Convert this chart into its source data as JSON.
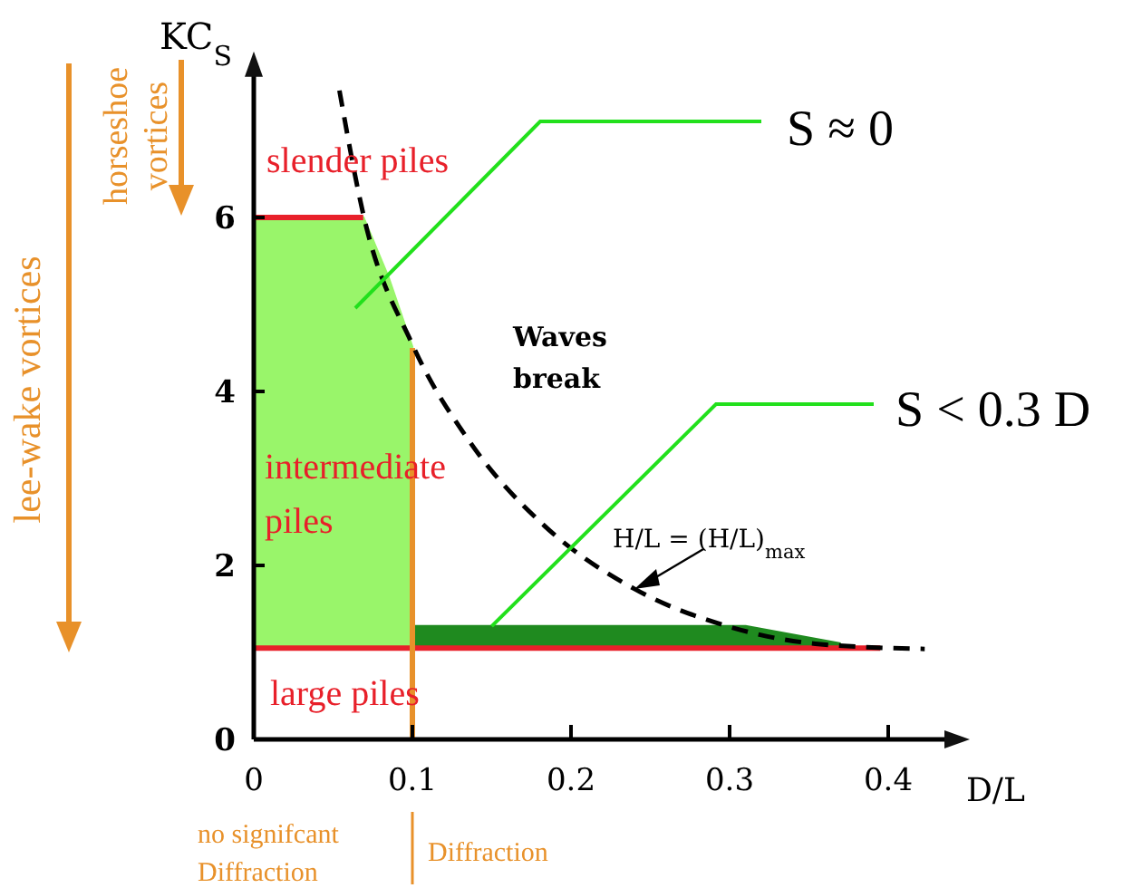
{
  "chart_data": {
    "type": "line",
    "xlabel": "D/L",
    "ylabel": "KC$_{S}$",
    "xlim": [
      0,
      0.44
    ],
    "ylim": [
      0,
      7.7
    ],
    "xticks": [
      0,
      0.1,
      0.2,
      0.3,
      0.4
    ],
    "yticks": [
      0,
      2,
      4,
      6
    ],
    "grid": false,
    "series": [
      {
        "color": "#99f56a",
        "x": [
          0,
          0.069,
          0.085,
          0.1
        ],
        "values": [
          6,
          6,
          5.3,
          4.5
        ],
        "lower": [
          1.05,
          1.05,
          1.05,
          1.05
        ],
        "upper": [
          6,
          6,
          5.3,
          4.5
        ]
      },
      {
        "color": "#1f8a1f",
        "x": [
          0.1,
          0.31,
          0.37
        ],
        "values": [
          1.3,
          1.3,
          1.1
        ],
        "lower": [
          1.05,
          1.05,
          1.05
        ],
        "upper": [
          1.3,
          1.3,
          1.1
        ]
      },
      {
        "color": "#e8202a",
        "x": [
          0,
          0.069
        ],
        "values": [
          6,
          6
        ]
      },
      {
        "color": "#e8202a",
        "x": [
          0,
          0.395
        ],
        "values": [
          1.05,
          1.05
        ]
      },
      {
        "color": "#e8912a",
        "x": [
          0.1,
          0.1
        ],
        "values": [
          4.5,
          0
        ]
      },
      {
        "color": "#000000",
        "line_style": "dashed",
        "x": [
          0.054,
          0.069,
          0.1,
          0.137,
          0.183,
          0.24,
          0.297,
          0.354,
          0.423
        ],
        "values": [
          7.46,
          6.04,
          4.54,
          3.4,
          2.46,
          1.73,
          1.31,
          1.1,
          1.04
        ]
      }
    ],
    "annotations": [
      "S ≈ 0",
      {
        "text": "S < 0.3 D",
        "x": 0.15,
        "y": 1.3
      },
      {
        "text": "H/L = (H/L)$_{max}$",
        "x": 0.24,
        "y": 1.73
      },
      "slender piles",
      "intermediate piles",
      "large piles",
      "Waves break",
      "no signifcant Diffraction",
      "Diffraction",
      "lee-wake vortices",
      "horseshoe vortices"
    ]
  }
}
